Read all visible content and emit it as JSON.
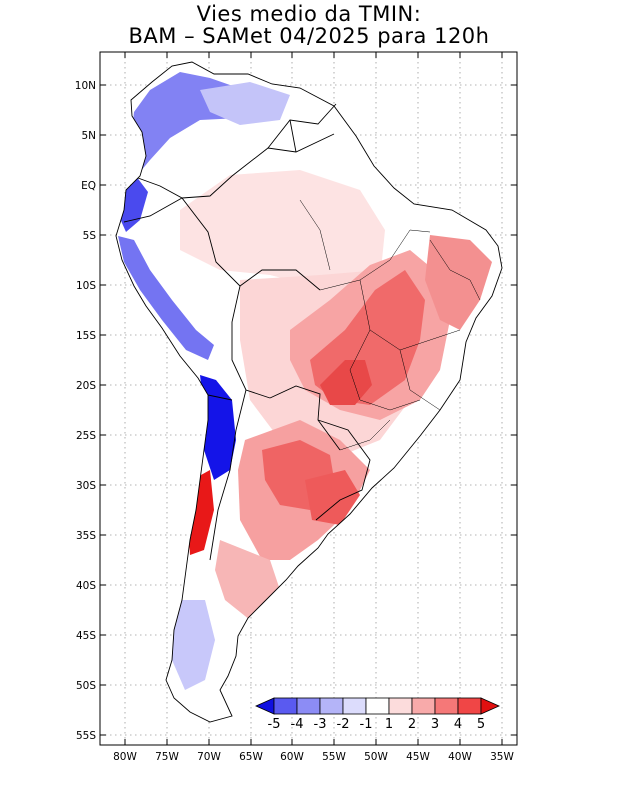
{
  "title": {
    "line1": "Vies medio da TMIN:",
    "line2": "BAM – SAMet 04/2025  para 120h"
  },
  "map": {
    "region": "South America",
    "lon_range": [
      -83,
      -34
    ],
    "lat_range": [
      -56,
      13
    ],
    "lat_ticks": [
      "10N",
      "5N",
      "EQ",
      "5S",
      "10S",
      "15S",
      "20S",
      "25S",
      "30S",
      "35S",
      "40S",
      "45S",
      "50S",
      "55S"
    ],
    "lon_ticks": [
      "80W",
      "75W",
      "70W",
      "65W",
      "60W",
      "55W",
      "50W",
      "45W",
      "40W",
      "35W"
    ],
    "field": "TMIN mean bias"
  },
  "colorbar": {
    "labels": [
      "-5",
      "-4",
      "-3",
      "-2",
      "-1",
      "1",
      "2",
      "3",
      "4",
      "5"
    ],
    "colors": [
      "#1010e0",
      "#5a5af0",
      "#8c8cf5",
      "#b4b4f8",
      "#dcdcfc",
      "#ffffff",
      "#fcdcdc",
      "#f8aaaa",
      "#f57878",
      "#f04646",
      "#e01010"
    ]
  },
  "colors": {
    "land": "#ffffff",
    "blue_strong": "#1212e6",
    "blue_mid": "#6f6ff2",
    "blue_light": "#d2d2fb",
    "red_strong": "#e81818",
    "red_mid": "#f58a8a",
    "red_light": "#fcdada",
    "border": "#000000",
    "grid": "#9a9a9a"
  }
}
